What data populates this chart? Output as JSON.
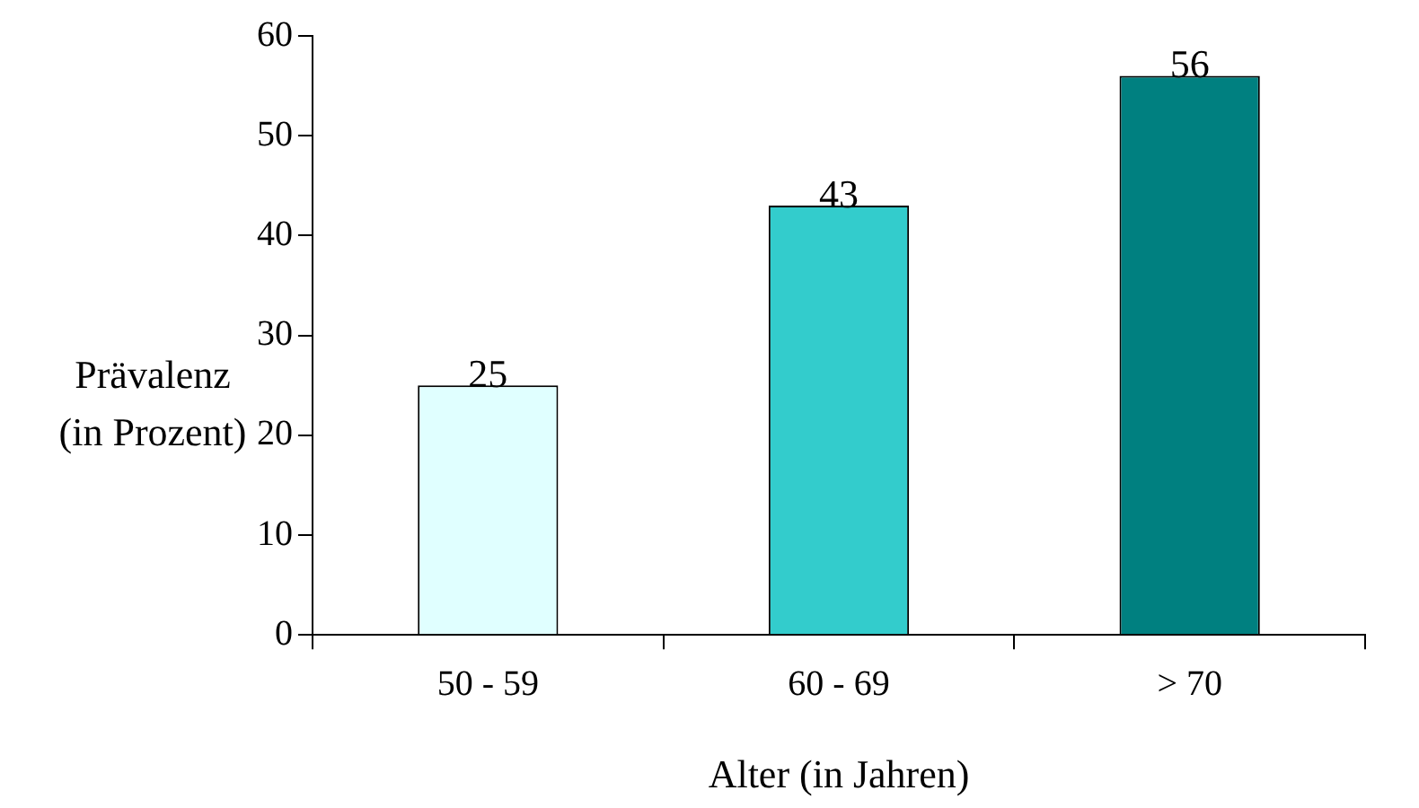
{
  "chart_data": {
    "type": "bar",
    "xlabel": "Alter (in Jahren)",
    "ylabel": "Prävalenz (in Prozent)",
    "categories": [
      "50 - 59",
      "60 - 69",
      "> 70"
    ],
    "values": [
      25,
      43,
      56
    ],
    "colors": [
      "#e0ffff",
      "#33cccc",
      "#008080"
    ],
    "ylim": [
      0,
      60
    ],
    "yticks": [
      0,
      10,
      20,
      30,
      40,
      50,
      60
    ],
    "grid": false,
    "data_labels": true
  }
}
